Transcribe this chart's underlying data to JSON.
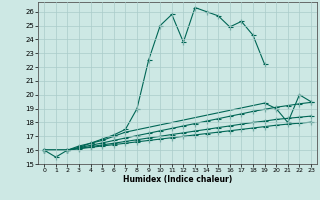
{
  "xlabel": "Humidex (Indice chaleur)",
  "xlim": [
    -0.5,
    23.5
  ],
  "ylim": [
    15,
    26.7
  ],
  "yticks": [
    15,
    16,
    17,
    18,
    19,
    20,
    21,
    22,
    23,
    24,
    25,
    26
  ],
  "xticks": [
    0,
    1,
    2,
    3,
    4,
    5,
    6,
    7,
    8,
    9,
    10,
    11,
    12,
    13,
    14,
    15,
    16,
    17,
    18,
    19,
    20,
    21,
    22,
    23
  ],
  "bg_color": "#cde8e4",
  "grid_color": "#aaccca",
  "line_color": "#006655",
  "line1_x": [
    0,
    1,
    2,
    3,
    4,
    5,
    6,
    7,
    8,
    9,
    10,
    11,
    12,
    13,
    14,
    15,
    16,
    17,
    18,
    19
  ],
  "line1_y": [
    16.0,
    15.5,
    16.0,
    16.3,
    16.5,
    16.8,
    17.1,
    17.5,
    19.0,
    22.5,
    25.0,
    25.8,
    23.8,
    26.3,
    26.0,
    25.7,
    24.9,
    25.3,
    24.3,
    22.2
  ],
  "line2_x": [
    0,
    2,
    3,
    4,
    5,
    6,
    7,
    19,
    20,
    21,
    22,
    23
  ],
  "line2_y": [
    16.0,
    16.0,
    16.2,
    16.5,
    16.7,
    17.0,
    17.3,
    19.4,
    19.0,
    18.0,
    20.0,
    19.5
  ],
  "line3_x": [
    0,
    2,
    3,
    4,
    5,
    6,
    7,
    8,
    9,
    10,
    11,
    12,
    13,
    14,
    15,
    16,
    17,
    18,
    19,
    20,
    21,
    22,
    23
  ],
  "line3_y": [
    16.0,
    16.0,
    16.18,
    16.35,
    16.52,
    16.7,
    16.88,
    17.05,
    17.22,
    17.4,
    17.57,
    17.75,
    17.92,
    18.1,
    18.27,
    18.45,
    18.62,
    18.8,
    18.95,
    19.1,
    19.22,
    19.35,
    19.45
  ],
  "line4_x": [
    0,
    2,
    3,
    4,
    5,
    6,
    7,
    8,
    9,
    10,
    11,
    12,
    13,
    14,
    15,
    16,
    17,
    18,
    19,
    20,
    21,
    22,
    23
  ],
  "line4_y": [
    16.0,
    16.0,
    16.13,
    16.25,
    16.38,
    16.5,
    16.63,
    16.75,
    16.88,
    17.0,
    17.13,
    17.25,
    17.38,
    17.5,
    17.63,
    17.75,
    17.88,
    18.0,
    18.1,
    18.22,
    18.3,
    18.38,
    18.46
  ],
  "line5_x": [
    0,
    2,
    3,
    4,
    5,
    6,
    7,
    8,
    9,
    10,
    11,
    12,
    13,
    14,
    15,
    16,
    17,
    18,
    19,
    20,
    21,
    22,
    23
  ],
  "line5_y": [
    16.0,
    16.0,
    16.1,
    16.2,
    16.3,
    16.4,
    16.5,
    16.6,
    16.7,
    16.8,
    16.9,
    17.0,
    17.1,
    17.2,
    17.3,
    17.4,
    17.5,
    17.6,
    17.7,
    17.8,
    17.88,
    17.95,
    18.02
  ]
}
